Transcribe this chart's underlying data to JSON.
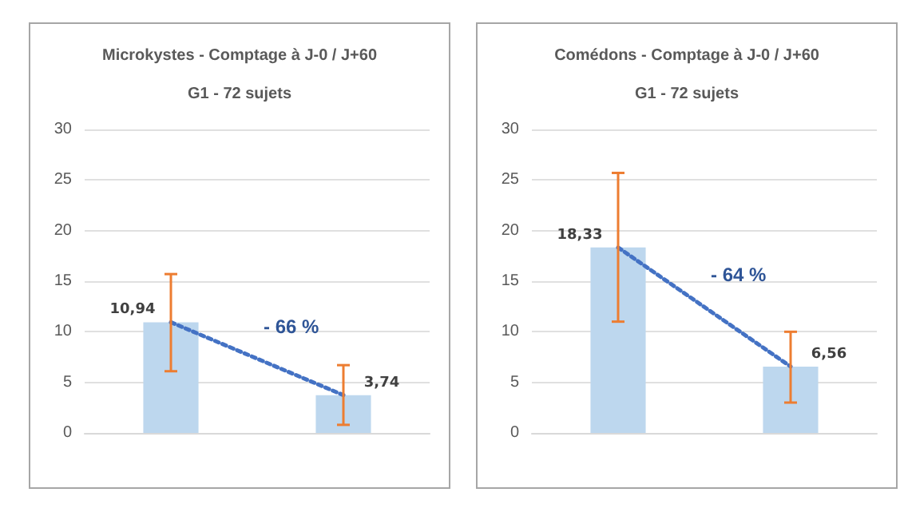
{
  "chart_data": [
    {
      "type": "bar",
      "title": "Microkystes - Comptage à J-0 / J+60",
      "subtitle": "G1 - 72 sujets",
      "categories": [
        null,
        null
      ],
      "ylim": [
        0,
        30
      ],
      "yticks": [
        0,
        5,
        10,
        15,
        20,
        25,
        30
      ],
      "grid": "y",
      "annotations": [
        "- 66 %"
      ],
      "series": [
        {
          "color": "#bdd7ee",
          "values": [
            10.94,
            3.74
          ],
          "value_labels": [
            "10,94",
            "3,74"
          ],
          "errors": [
            [
              6.1,
              15.7
            ],
            [
              0.8,
              6.7
            ]
          ]
        },
        {
          "type": "line",
          "color": "#4472c4",
          "values": [
            10.94,
            3.74
          ],
          "line_style": "dotted",
          "marker": "none"
        }
      ]
    },
    {
      "type": "bar",
      "title": "Comédons - Comptage à J-0 / J+60",
      "subtitle": "G1 - 72 sujets",
      "categories": [
        null,
        null
      ],
      "ylim": [
        0,
        30
      ],
      "yticks": [
        0,
        5,
        10,
        15,
        20,
        25,
        30
      ],
      "grid": "y",
      "annotations": [
        "- 64 %"
      ],
      "series": [
        {
          "color": "#bdd7ee",
          "values": [
            18.33,
            6.56
          ],
          "value_labels": [
            "18,33",
            "6,56"
          ],
          "errors": [
            [
              11.0,
              25.7
            ],
            [
              3.0,
              10.0
            ]
          ]
        },
        {
          "type": "line",
          "color": "#4472c4",
          "values": [
            18.33,
            6.56
          ],
          "line_style": "dotted",
          "marker": "none"
        }
      ]
    }
  ]
}
